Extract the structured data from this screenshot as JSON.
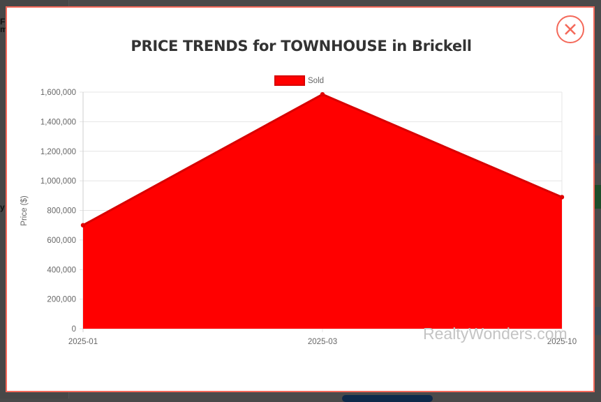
{
  "modal": {
    "title": "PRICE TRENDS for TOWNHOUSE in Brickell",
    "close_icon": "close-x-circle-icon",
    "accent_color": "#f4695a",
    "watermark": "RealtyWonders.com"
  },
  "chart_data": {
    "type": "area",
    "title": "PRICE TRENDS for TOWNHOUSE in Brickell",
    "categories": [
      "2025-01",
      "2025-03",
      "2025-10"
    ],
    "series": [
      {
        "name": "Sold",
        "color": "#ff0000",
        "values": [
          700000,
          1585000,
          890000
        ]
      }
    ],
    "xlabel": "",
    "ylabel": "Price ($)",
    "ylim": [
      0,
      1600000
    ],
    "yticks": [
      "0",
      "200,000",
      "400,000",
      "600,000",
      "800,000",
      "1,000,000",
      "1,200,000",
      "1,400,000",
      "1,600,000"
    ],
    "grid": true,
    "legend_position": "top"
  }
}
